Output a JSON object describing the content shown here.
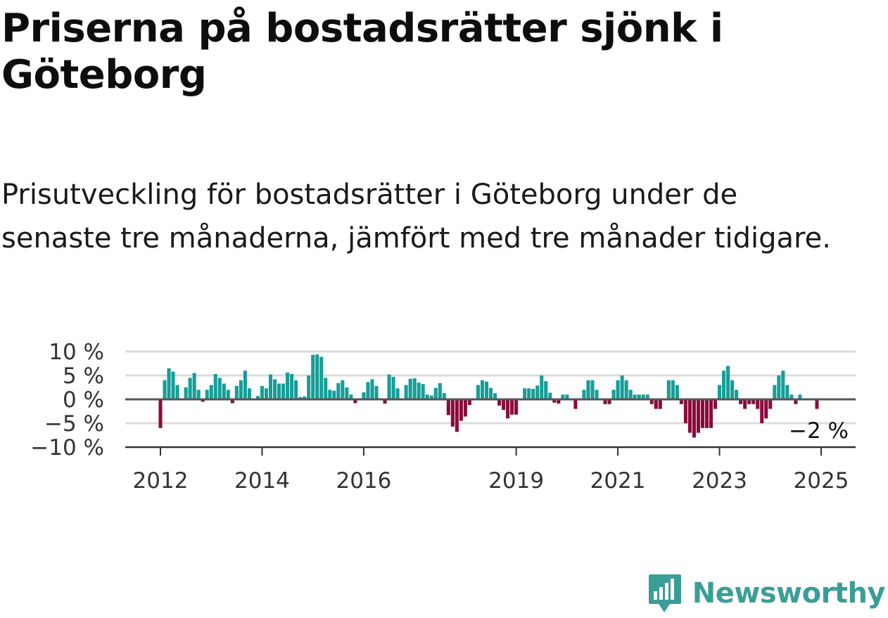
{
  "header": {
    "title": "Priserna på bostadsrätter sjönk i Göteborg",
    "subtitle": "Prisutveckling för bostadsrätter i Göteborg under de senaste tre månaderna, jämfört med tre månader tidigare."
  },
  "colors": {
    "positive": "#159e97",
    "negative": "#8c0a3c",
    "grid": "#dcdcdc",
    "zero_line": "#555555",
    "brand": "#3a9d98"
  },
  "brand": {
    "name": "Newsworthy",
    "icon": "bar-chart-speech-bubble-icon"
  },
  "chart_data": {
    "type": "bar",
    "x_start": "2012-01",
    "interval": "monthly",
    "ylim": [
      -10,
      10
    ],
    "ytick_values": [
      10,
      5,
      0,
      -5,
      -10
    ],
    "yticks": [
      "10 %",
      "5 %",
      "0 %",
      "−5 %",
      "−10 %"
    ],
    "xticks": [
      "2012",
      "2014",
      "2016",
      "2019",
      "2021",
      "2023",
      "2025"
    ],
    "xtick_years": [
      2012,
      2014,
      2016,
      2019,
      2021,
      2023,
      2025
    ],
    "grid": true,
    "annotation": "−2 %",
    "values": [
      -6,
      4,
      6.5,
      5.8,
      3,
      0,
      2.5,
      4.5,
      5.5,
      2,
      -0.5,
      2,
      3,
      5.3,
      4.5,
      3.3,
      2,
      -0.8,
      2.8,
      4,
      6,
      2.3,
      0,
      0.7,
      2.8,
      2.3,
      5.2,
      4.2,
      3.3,
      3.3,
      5.6,
      5.3,
      4,
      0.5,
      0.6,
      5,
      9.3,
      9.4,
      8.9,
      4.5,
      2,
      1.8,
      3.4,
      4,
      2.5,
      1,
      -0.8,
      0,
      1.5,
      3.6,
      4.2,
      2.8,
      0,
      -0.9,
      5.2,
      4.7,
      2.3,
      0,
      3,
      4.3,
      4.4,
      3.5,
      3.2,
      1,
      0.8,
      2.4,
      3.4,
      1.3,
      -3.3,
      -5.7,
      -6.8,
      -4.5,
      -3.6,
      -1.2,
      0,
      3,
      4,
      3.7,
      2.4,
      1.3,
      -1.3,
      -2.2,
      -4,
      -3.2,
      -3.2,
      0,
      2.3,
      2.3,
      2.2,
      2.9,
      5,
      3.8,
      1.4,
      -0.7,
      -0.9,
      1,
      1,
      0,
      -2,
      0,
      2,
      4,
      4,
      2,
      0,
      -1,
      -1,
      2,
      4,
      5,
      4,
      2,
      1,
      1,
      1,
      1,
      -1,
      -2,
      -2,
      0,
      4,
      4,
      3,
      -1,
      -5,
      -7,
      -8,
      -7,
      -6,
      -6,
      -6,
      -2,
      3,
      6,
      7,
      4,
      2,
      -1,
      -2,
      -1,
      -1,
      -2,
      -5,
      -4,
      -2,
      3,
      5,
      6,
      3,
      1,
      -1,
      1,
      0,
      0,
      0,
      -2
    ]
  }
}
